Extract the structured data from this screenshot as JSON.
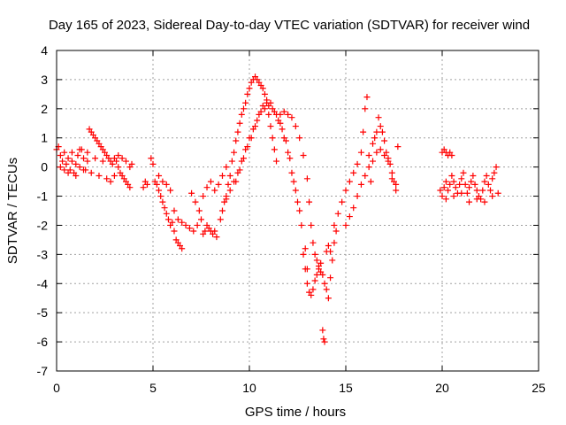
{
  "chart_data": {
    "type": "scatter",
    "title": "Day 165 of 2023, Sidereal Day-to-day VTEC variation (SDTVAR) for receiver wind",
    "xlabel": "GPS time / hours",
    "ylabel": "SDTVAR / TECUs",
    "xlim": [
      0,
      25
    ],
    "ylim": [
      -7,
      4
    ],
    "xticks": [
      "0",
      "5",
      "10",
      "15",
      "20",
      "25"
    ],
    "yticks": [
      "-7",
      "-6",
      "-5",
      "-4",
      "-3",
      "-2",
      "-1",
      "0",
      "1",
      "2",
      "3",
      "4"
    ],
    "grid": true,
    "marker": "plus",
    "color": "#ff0000",
    "series": [
      {
        "name": "SDTVAR",
        "points": [
          [
            0.0,
            0.6
          ],
          [
            0.1,
            0.7
          ],
          [
            0.2,
            0.4
          ],
          [
            0.3,
            0.2
          ],
          [
            0.4,
            0.5
          ],
          [
            0.5,
            0.1
          ],
          [
            0.6,
            0.3
          ],
          [
            0.7,
            -0.1
          ],
          [
            0.8,
            0.2
          ],
          [
            0.9,
            -0.2
          ],
          [
            1.0,
            0.1
          ],
          [
            1.1,
            0.4
          ],
          [
            1.2,
            0.0
          ],
          [
            1.3,
            0.6
          ],
          [
            1.4,
            0.3
          ],
          [
            1.5,
            -0.1
          ],
          [
            1.6,
            0.2
          ],
          [
            1.7,
            1.3
          ],
          [
            1.8,
            1.2
          ],
          [
            1.9,
            1.1
          ],
          [
            2.0,
            1.0
          ],
          [
            2.1,
            0.9
          ],
          [
            2.2,
            0.8
          ],
          [
            2.3,
            0.7
          ],
          [
            2.4,
            0.6
          ],
          [
            2.5,
            0.5
          ],
          [
            2.6,
            0.4
          ],
          [
            2.7,
            0.3
          ],
          [
            2.8,
            0.2
          ],
          [
            2.9,
            0.1
          ],
          [
            3.0,
            0.3
          ],
          [
            3.1,
            0.2
          ],
          [
            3.2,
            0.0
          ],
          [
            3.3,
            -0.2
          ],
          [
            3.4,
            -0.3
          ],
          [
            3.5,
            -0.4
          ],
          [
            3.6,
            -0.5
          ],
          [
            3.7,
            -0.6
          ],
          [
            3.8,
            -0.7
          ],
          [
            3.9,
            0.1
          ],
          [
            0.2,
            0.0
          ],
          [
            0.4,
            -0.1
          ],
          [
            0.6,
            -0.2
          ],
          [
            0.8,
            0.5
          ],
          [
            1.0,
            -0.3
          ],
          [
            1.2,
            0.6
          ],
          [
            1.4,
            -0.1
          ],
          [
            1.6,
            0.5
          ],
          [
            1.8,
            -0.2
          ],
          [
            2.0,
            0.3
          ],
          [
            2.2,
            -0.3
          ],
          [
            2.4,
            0.2
          ],
          [
            2.6,
            -0.4
          ],
          [
            2.8,
            -0.5
          ],
          [
            3.0,
            -0.3
          ],
          [
            3.2,
            0.4
          ],
          [
            3.4,
            0.3
          ],
          [
            3.6,
            0.2
          ],
          [
            3.8,
            0.0
          ],
          [
            4.5,
            -0.7
          ],
          [
            4.6,
            -0.5
          ],
          [
            4.7,
            -0.6
          ],
          [
            4.9,
            0.3
          ],
          [
            5.0,
            0.1
          ],
          [
            5.1,
            -0.5
          ],
          [
            5.2,
            -0.6
          ],
          [
            5.3,
            -0.8
          ],
          [
            5.4,
            -1.0
          ],
          [
            5.5,
            -1.2
          ],
          [
            5.6,
            -1.4
          ],
          [
            5.7,
            -1.6
          ],
          [
            5.8,
            -1.8
          ],
          [
            5.9,
            -2.0
          ],
          [
            6.0,
            -1.9
          ],
          [
            6.1,
            -2.2
          ],
          [
            6.2,
            -2.5
          ],
          [
            6.3,
            -2.6
          ],
          [
            6.4,
            -2.7
          ],
          [
            6.5,
            -2.8
          ],
          [
            5.3,
            -0.3
          ],
          [
            5.5,
            -0.5
          ],
          [
            5.7,
            -0.6
          ],
          [
            5.9,
            -0.8
          ],
          [
            6.1,
            -1.5
          ],
          [
            6.3,
            -1.8
          ],
          [
            6.5,
            -1.9
          ],
          [
            6.7,
            -2.0
          ],
          [
            6.9,
            -2.1
          ],
          [
            7.1,
            -2.2
          ],
          [
            7.3,
            -2.0
          ],
          [
            7.5,
            -1.8
          ],
          [
            7.6,
            -2.3
          ],
          [
            7.7,
            -2.2
          ],
          [
            7.8,
            -2.0
          ],
          [
            7.9,
            -2.1
          ],
          [
            8.0,
            -2.2
          ],
          [
            8.1,
            -2.3
          ],
          [
            8.2,
            -2.2
          ],
          [
            8.3,
            -2.4
          ],
          [
            7.0,
            -0.9
          ],
          [
            7.2,
            -1.2
          ],
          [
            7.4,
            -1.5
          ],
          [
            7.6,
            -1.0
          ],
          [
            7.8,
            -0.7
          ],
          [
            8.0,
            -0.5
          ],
          [
            8.2,
            -0.8
          ],
          [
            8.4,
            -0.6
          ],
          [
            8.6,
            -0.3
          ],
          [
            8.8,
            0.0
          ],
          [
            8.5,
            -1.8
          ],
          [
            8.6,
            -1.5
          ],
          [
            8.7,
            -1.2
          ],
          [
            8.8,
            -1.0
          ],
          [
            8.9,
            -0.6
          ],
          [
            9.0,
            -0.3
          ],
          [
            9.1,
            0.2
          ],
          [
            9.2,
            0.5
          ],
          [
            9.3,
            0.9
          ],
          [
            9.4,
            1.2
          ],
          [
            9.5,
            1.5
          ],
          [
            9.6,
            1.8
          ],
          [
            9.7,
            2.0
          ],
          [
            9.8,
            2.2
          ],
          [
            9.9,
            2.5
          ],
          [
            10.0,
            2.7
          ],
          [
            10.1,
            2.9
          ],
          [
            10.2,
            3.0
          ],
          [
            10.3,
            3.1
          ],
          [
            10.4,
            3.0
          ],
          [
            10.5,
            2.9
          ],
          [
            10.6,
            2.8
          ],
          [
            10.7,
            2.7
          ],
          [
            10.8,
            2.5
          ],
          [
            10.9,
            2.2
          ],
          [
            11.0,
            1.8
          ],
          [
            11.1,
            1.4
          ],
          [
            11.2,
            1.0
          ],
          [
            11.3,
            0.6
          ],
          [
            11.4,
            0.2
          ],
          [
            8.8,
            -1.1
          ],
          [
            9.0,
            -0.8
          ],
          [
            9.2,
            -0.5
          ],
          [
            9.4,
            -0.2
          ],
          [
            9.6,
            0.2
          ],
          [
            9.8,
            0.6
          ],
          [
            10.0,
            1.0
          ],
          [
            10.2,
            1.3
          ],
          [
            10.4,
            1.6
          ],
          [
            10.6,
            1.9
          ],
          [
            10.8,
            2.0
          ],
          [
            11.0,
            2.1
          ],
          [
            11.2,
            2.0
          ],
          [
            11.4,
            1.8
          ],
          [
            11.6,
            1.5
          ],
          [
            11.8,
            1.0
          ],
          [
            12.0,
            0.5
          ],
          [
            12.2,
            -0.2
          ],
          [
            12.4,
            -0.8
          ],
          [
            12.6,
            -1.5
          ],
          [
            9.3,
            -0.5
          ],
          [
            9.5,
            -0.1
          ],
          [
            9.7,
            0.3
          ],
          [
            9.9,
            0.7
          ],
          [
            10.1,
            1.0
          ],
          [
            10.3,
            1.4
          ],
          [
            10.5,
            1.8
          ],
          [
            10.7,
            2.1
          ],
          [
            10.9,
            2.3
          ],
          [
            11.1,
            2.2
          ],
          [
            11.3,
            1.9
          ],
          [
            11.5,
            1.6
          ],
          [
            11.7,
            1.3
          ],
          [
            11.9,
            0.9
          ],
          [
            12.1,
            0.3
          ],
          [
            12.3,
            -0.5
          ],
          [
            12.5,
            -1.2
          ],
          [
            12.7,
            -2.0
          ],
          [
            12.9,
            -2.8
          ],
          [
            13.0,
            -3.5
          ],
          [
            11.6,
            1.8
          ],
          [
            11.8,
            1.9
          ],
          [
            12.0,
            1.8
          ],
          [
            12.2,
            1.7
          ],
          [
            12.4,
            1.4
          ],
          [
            12.6,
            1.0
          ],
          [
            12.8,
            0.4
          ],
          [
            13.0,
            -0.4
          ],
          [
            13.1,
            -1.2
          ],
          [
            13.2,
            -2.0
          ],
          [
            13.3,
            -2.6
          ],
          [
            13.4,
            -3.0
          ],
          [
            13.5,
            -3.2
          ],
          [
            13.6,
            -3.4
          ],
          [
            13.7,
            -3.6
          ],
          [
            13.8,
            -5.6
          ],
          [
            13.85,
            -5.9
          ],
          [
            13.9,
            -6.0
          ],
          [
            12.8,
            -3.0
          ],
          [
            12.9,
            -3.5
          ],
          [
            13.0,
            -4.0
          ],
          [
            13.1,
            -4.3
          ],
          [
            13.2,
            -4.4
          ],
          [
            13.3,
            -4.2
          ],
          [
            13.4,
            -3.9
          ],
          [
            13.5,
            -3.7
          ],
          [
            13.6,
            -3.5
          ],
          [
            13.7,
            -3.3
          ],
          [
            13.8,
            -3.7
          ],
          [
            13.9,
            -4.0
          ],
          [
            14.0,
            -4.2
          ],
          [
            14.1,
            -4.5
          ],
          [
            14.2,
            -3.8
          ],
          [
            14.3,
            -3.2
          ],
          [
            14.4,
            -2.6
          ],
          [
            14.5,
            -2.2
          ],
          [
            14.0,
            -2.9
          ],
          [
            14.1,
            -2.7
          ],
          [
            14.2,
            -2.9
          ],
          [
            14.4,
            -2.0
          ],
          [
            14.6,
            -1.6
          ],
          [
            14.8,
            -1.2
          ],
          [
            15.0,
            -0.8
          ],
          [
            15.2,
            -0.5
          ],
          [
            15.4,
            -0.2
          ],
          [
            15.6,
            0.1
          ],
          [
            15.8,
            0.5
          ],
          [
            15.9,
            1.2
          ],
          [
            16.0,
            2.0
          ],
          [
            16.1,
            2.4
          ],
          [
            16.2,
            0.4
          ],
          [
            16.3,
            -0.5
          ],
          [
            16.4,
            0.8
          ],
          [
            16.5,
            1.0
          ],
          [
            16.6,
            1.2
          ],
          [
            16.7,
            1.7
          ],
          [
            16.8,
            1.4
          ],
          [
            16.9,
            1.2
          ],
          [
            17.0,
            0.9
          ],
          [
            17.1,
            0.5
          ],
          [
            17.2,
            0.3
          ],
          [
            17.3,
            0.1
          ],
          [
            17.4,
            -0.2
          ],
          [
            17.5,
            -0.5
          ],
          [
            17.6,
            -0.8
          ],
          [
            15.0,
            -2.0
          ],
          [
            15.2,
            -1.7
          ],
          [
            15.4,
            -1.4
          ],
          [
            15.6,
            -1.0
          ],
          [
            15.8,
            -0.6
          ],
          [
            16.0,
            -0.3
          ],
          [
            16.2,
            0.0
          ],
          [
            16.4,
            0.2
          ],
          [
            16.6,
            0.5
          ],
          [
            16.8,
            0.6
          ],
          [
            17.0,
            0.4
          ],
          [
            17.2,
            0.2
          ],
          [
            17.4,
            -0.4
          ],
          [
            17.6,
            -0.6
          ],
          [
            17.7,
            0.7
          ],
          [
            19.9,
            -0.8
          ],
          [
            20.0,
            -1.0
          ],
          [
            20.1,
            -0.7
          ],
          [
            20.2,
            -0.5
          ],
          [
            20.3,
            -0.8
          ],
          [
            20.4,
            -0.6
          ],
          [
            20.5,
            -0.3
          ],
          [
            20.6,
            -0.5
          ],
          [
            20.7,
            -0.7
          ],
          [
            20.8,
            -0.9
          ],
          [
            20.9,
            -0.6
          ],
          [
            21.0,
            -0.4
          ],
          [
            21.1,
            -0.2
          ],
          [
            21.2,
            -0.6
          ],
          [
            21.3,
            -0.9
          ],
          [
            21.4,
            -0.7
          ],
          [
            21.5,
            -0.5
          ],
          [
            21.6,
            -0.3
          ],
          [
            21.7,
            -0.6
          ],
          [
            21.8,
            -0.8
          ],
          [
            21.9,
            -1.0
          ],
          [
            22.0,
            -1.1
          ],
          [
            22.1,
            -0.8
          ],
          [
            22.2,
            -0.5
          ],
          [
            22.3,
            -0.3
          ],
          [
            22.4,
            -0.6
          ],
          [
            22.5,
            -0.8
          ],
          [
            22.6,
            -0.4
          ],
          [
            22.7,
            -0.2
          ],
          [
            22.8,
            0.0
          ],
          [
            22.9,
            -0.9
          ],
          [
            20.0,
            0.5
          ],
          [
            20.1,
            0.6
          ],
          [
            20.2,
            0.5
          ],
          [
            20.3,
            0.4
          ],
          [
            20.4,
            0.5
          ],
          [
            20.5,
            0.4
          ],
          [
            20.2,
            -1.1
          ],
          [
            20.6,
            -1.0
          ],
          [
            21.0,
            -0.9
          ],
          [
            21.4,
            -1.2
          ],
          [
            21.8,
            -1.1
          ],
          [
            22.2,
            -1.2
          ],
          [
            22.6,
            -1.0
          ]
        ]
      }
    ]
  }
}
